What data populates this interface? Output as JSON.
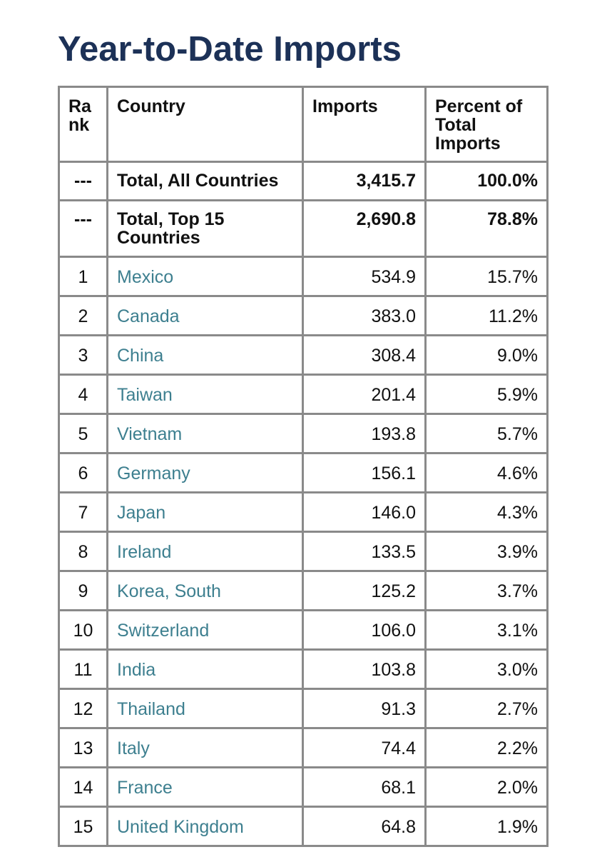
{
  "page": {
    "title": "Year-to-Date Imports"
  },
  "table": {
    "headers": {
      "rank": "Rank",
      "country": "Country",
      "imports": "Imports",
      "percent": "Percent of Total Imports"
    },
    "totals": [
      {
        "rank": "---",
        "country": "Total, All Countries",
        "imports": "3,415.7",
        "percent": "100.0%"
      },
      {
        "rank": "---",
        "country": "Total, Top 15 Countries",
        "imports": "2,690.8",
        "percent": "78.8%"
      }
    ],
    "rows": [
      {
        "rank": "1",
        "country": "Mexico",
        "imports": "534.9",
        "percent": "15.7%"
      },
      {
        "rank": "2",
        "country": "Canada",
        "imports": "383.0",
        "percent": "11.2%"
      },
      {
        "rank": "3",
        "country": "China",
        "imports": "308.4",
        "percent": "9.0%"
      },
      {
        "rank": "4",
        "country": "Taiwan",
        "imports": "201.4",
        "percent": "5.9%"
      },
      {
        "rank": "5",
        "country": "Vietnam",
        "imports": "193.8",
        "percent": "5.7%"
      },
      {
        "rank": "6",
        "country": "Germany",
        "imports": "156.1",
        "percent": "4.6%"
      },
      {
        "rank": "7",
        "country": "Japan",
        "imports": "146.0",
        "percent": "4.3%"
      },
      {
        "rank": "8",
        "country": "Ireland",
        "imports": "133.5",
        "percent": "3.9%"
      },
      {
        "rank": "9",
        "country": "Korea, South",
        "imports": "125.2",
        "percent": "3.7%"
      },
      {
        "rank": "10",
        "country": "Switzerland",
        "imports": "106.0",
        "percent": "3.1%"
      },
      {
        "rank": "11",
        "country": "India",
        "imports": "103.8",
        "percent": "3.0%"
      },
      {
        "rank": "12",
        "country": "Thailand",
        "imports": "91.3",
        "percent": "2.7%"
      },
      {
        "rank": "13",
        "country": "Italy",
        "imports": "74.4",
        "percent": "2.2%"
      },
      {
        "rank": "14",
        "country": "France",
        "imports": "68.1",
        "percent": "2.0%"
      },
      {
        "rank": "15",
        "country": "United Kingdom",
        "imports": "64.8",
        "percent": "1.9%"
      }
    ]
  },
  "colors": {
    "title": "#1c3157",
    "link": "#3d7f8f",
    "border": "#8a8a8a",
    "text": "#111111"
  }
}
